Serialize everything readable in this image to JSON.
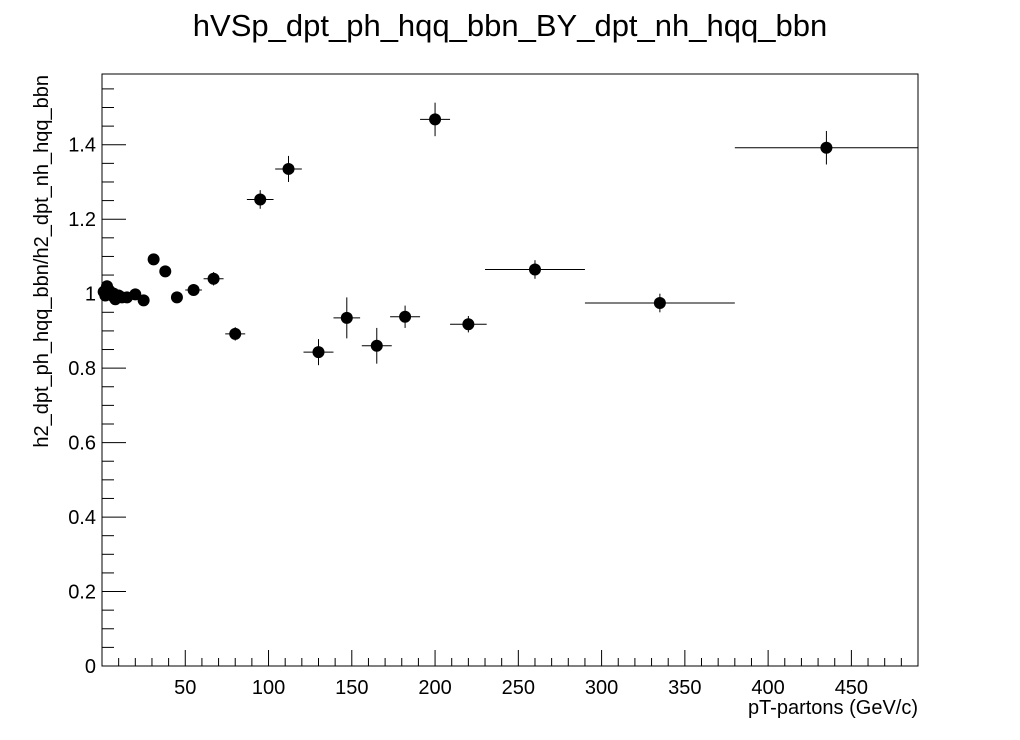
{
  "chart_data": {
    "type": "scatter",
    "title": "hVSp_dpt_ph_hqq_bbn_BY_dpt_nh_hqq_bbn",
    "xlabel": "pT-partons (GeV/c)",
    "ylabel": "h2_dpt_ph_hqq_bbn/h2_dpt_nh_hqq_bbn",
    "xlim": [
      0,
      490
    ],
    "ylim": [
      0,
      1.59
    ],
    "x_ticks": [
      50,
      100,
      150,
      200,
      250,
      300,
      350,
      400,
      450
    ],
    "y_ticks": [
      0,
      0.2,
      0.4,
      0.6,
      0.8,
      1,
      1.2,
      1.4
    ],
    "y_tick_labels": [
      "0",
      "0.2",
      "0.4",
      "0.6",
      "0.8",
      "1",
      "1.2",
      "1.4"
    ],
    "grid": false,
    "marker_color": "#000000",
    "points": [
      {
        "x": 1,
        "y": 1.005,
        "xerr": 0.5,
        "yerr": 0.012
      },
      {
        "x": 2,
        "y": 0.995,
        "xerr": 0.5,
        "yerr": 0.012
      },
      {
        "x": 3,
        "y": 1.02,
        "xerr": 0.5,
        "yerr": 0.012
      },
      {
        "x": 4,
        "y": 1.01,
        "xerr": 0.5,
        "yerr": 0.012
      },
      {
        "x": 5,
        "y": 1.005,
        "xerr": 0.5,
        "yerr": 0.012
      },
      {
        "x": 6,
        "y": 0.995,
        "xerr": 0.5,
        "yerr": 0.012
      },
      {
        "x": 7,
        "y": 1.0,
        "xerr": 0.5,
        "yerr": 0.012
      },
      {
        "x": 8,
        "y": 0.985,
        "xerr": 0.5,
        "yerr": 0.012
      },
      {
        "x": 10,
        "y": 0.995,
        "xerr": 1.0,
        "yerr": 0.012
      },
      {
        "x": 12,
        "y": 0.99,
        "xerr": 1.0,
        "yerr": 0.012
      },
      {
        "x": 15,
        "y": 0.99,
        "xerr": 2.0,
        "yerr": 0.012
      },
      {
        "x": 20,
        "y": 0.998,
        "xerr": 2.0,
        "yerr": 0.012
      },
      {
        "x": 25,
        "y": 0.982,
        "xerr": 2.0,
        "yerr": 0.015
      },
      {
        "x": 31,
        "y": 1.092,
        "xerr": 3.0,
        "yerr": 0.015
      },
      {
        "x": 38,
        "y": 1.06,
        "xerr": 3.0,
        "yerr": 0.015
      },
      {
        "x": 45,
        "y": 0.99,
        "xerr": 3.0,
        "yerr": 0.015
      },
      {
        "x": 55,
        "y": 1.01,
        "xerr": 5.0,
        "yerr": 0.015
      },
      {
        "x": 67,
        "y": 1.04,
        "xerr": 6.0,
        "yerr": 0.018
      },
      {
        "x": 80,
        "y": 0.892,
        "xerr": 6.0,
        "yerr": 0.018
      },
      {
        "x": 95,
        "y": 1.253,
        "xerr": 8.0,
        "yerr": 0.025
      },
      {
        "x": 112,
        "y": 1.335,
        "xerr": 8.0,
        "yerr": 0.035
      },
      {
        "x": 130,
        "y": 0.843,
        "xerr": 9.0,
        "yerr": 0.035
      },
      {
        "x": 147,
        "y": 0.935,
        "xerr": 8.0,
        "yerr": 0.055
      },
      {
        "x": 165,
        "y": 0.86,
        "xerr": 9.0,
        "yerr": 0.048
      },
      {
        "x": 182,
        "y": 0.938,
        "xerr": 9.0,
        "yerr": 0.03
      },
      {
        "x": 200,
        "y": 1.468,
        "xerr": 9.0,
        "yerr": 0.045
      },
      {
        "x": 220,
        "y": 0.918,
        "xerr": 11.0,
        "yerr": 0.022
      },
      {
        "x": 260,
        "y": 1.065,
        "xerr": 30.0,
        "yerr": 0.025
      },
      {
        "x": 335,
        "y": 0.975,
        "xerr": 45.0,
        "yerr": 0.025
      },
      {
        "x": 435,
        "y": 1.392,
        "xerr": 55.0,
        "yerr": 0.045
      }
    ]
  }
}
